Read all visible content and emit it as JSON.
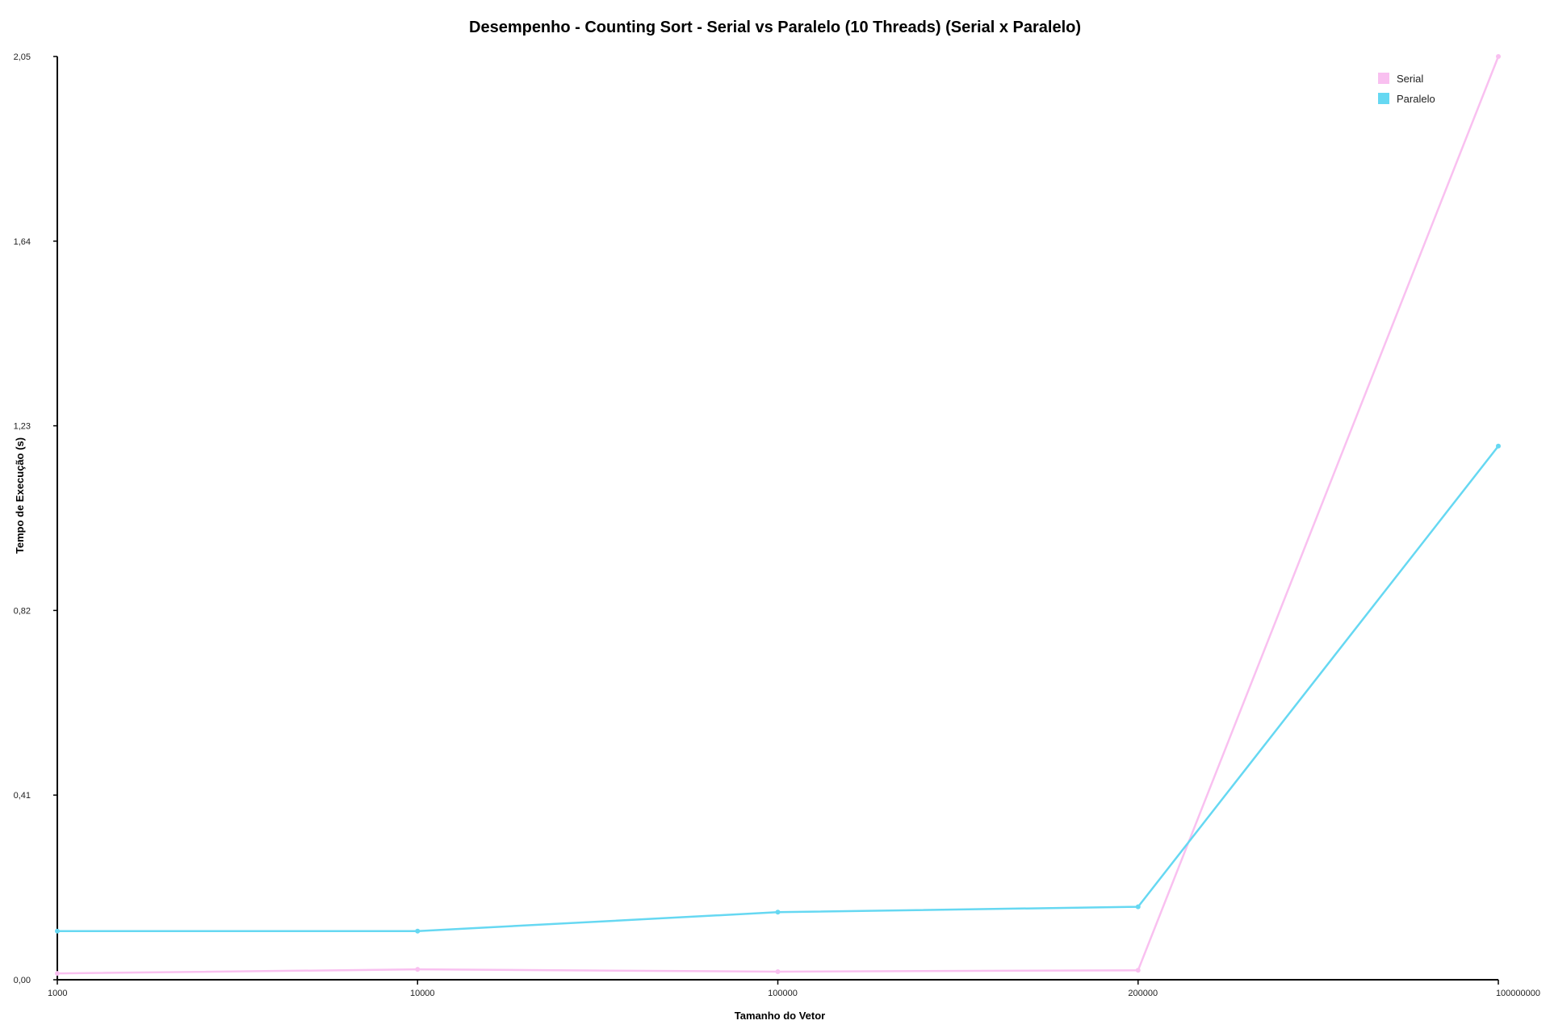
{
  "chart_data": {
    "type": "line",
    "title": "Desempenho - Counting Sort - Serial vs Paralelo (10 Threads) (Serial x Paralelo)",
    "xlabel": "Tamanho do Vetor",
    "ylabel": "Tempo de Execução (s)",
    "categories": [
      "1000",
      "10000",
      "100000",
      "200000",
      "100000000"
    ],
    "y_ticks": [
      "0,00",
      "0,41",
      "0,82",
      "1,23",
      "1,64",
      "2,05"
    ],
    "y_tick_values": [
      0,
      0.41,
      0.82,
      1.23,
      1.64,
      2.05
    ],
    "ylim": [
      0,
      2.05
    ],
    "grid": false,
    "legend_position": "top-right",
    "series": [
      {
        "name": "Serial",
        "color": "#f9c0f0",
        "values": [
          0.014,
          0.023,
          0.018,
          0.021,
          2.05
        ]
      },
      {
        "name": "Paralelo",
        "color": "#66d8f2",
        "values": [
          0.108,
          0.108,
          0.15,
          0.162,
          1.185
        ]
      }
    ]
  }
}
